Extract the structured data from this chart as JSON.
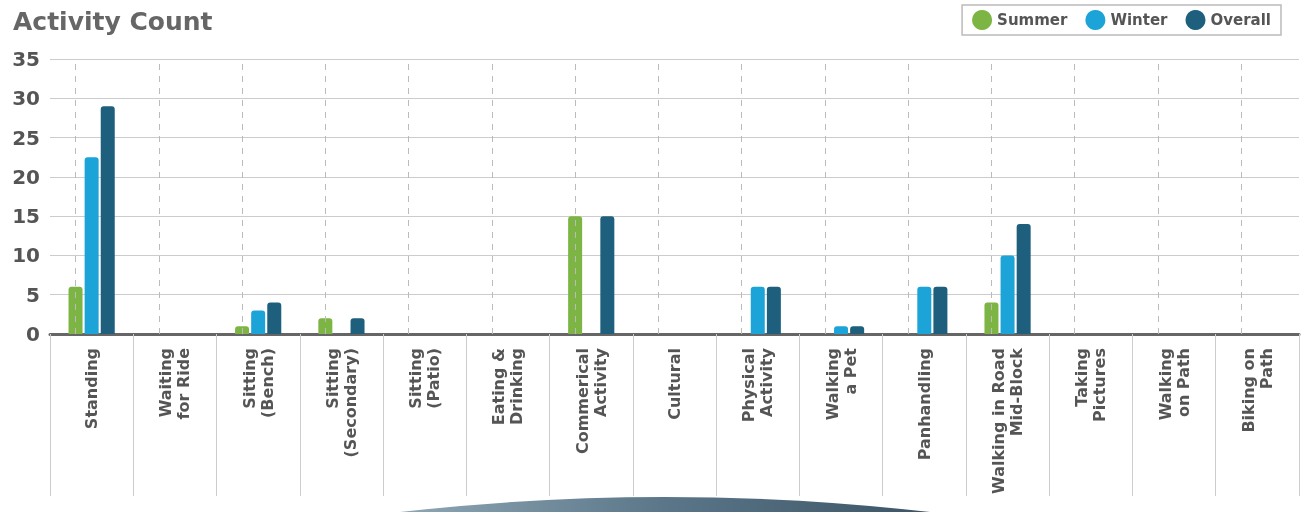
{
  "chart_data": {
    "type": "bar",
    "title": "Activity Count",
    "categories": [
      "Standing",
      "Waiting\nfor Ride",
      "Sitting\n(Bench)",
      "Sitting\n(Secondary)",
      "Sitting\n(Patio)",
      "Eating &\nDrinking",
      "Commerical\nActivity",
      "Cultural",
      "Physical\nActivity",
      "Walking\na Pet",
      "Panhandling",
      "Walking in Road\nMid-Block",
      "Taking\nPictures",
      "Walking\non Path",
      "Biking on\nPath"
    ],
    "series": [
      {
        "name": "Summer",
        "color": "#7db544",
        "values": [
          6,
          0,
          1,
          2,
          0,
          0,
          15,
          0,
          0,
          0,
          0,
          4,
          0,
          0,
          0
        ]
      },
      {
        "name": "Winter",
        "color": "#1ca3d8",
        "values": [
          22.5,
          0,
          3,
          0,
          0,
          0,
          0,
          0,
          6,
          1,
          6,
          10,
          0,
          0,
          0
        ]
      },
      {
        "name": "Overall",
        "color": "#1d5f7c",
        "values": [
          29,
          0,
          4,
          2,
          0,
          0,
          15,
          0,
          6,
          1,
          6,
          14,
          0,
          0,
          0
        ]
      }
    ],
    "ylim": [
      0,
      35
    ],
    "yticks": [
      0,
      5,
      10,
      15,
      20,
      25,
      30,
      35
    ],
    "grid": true,
    "legend": "top right"
  }
}
